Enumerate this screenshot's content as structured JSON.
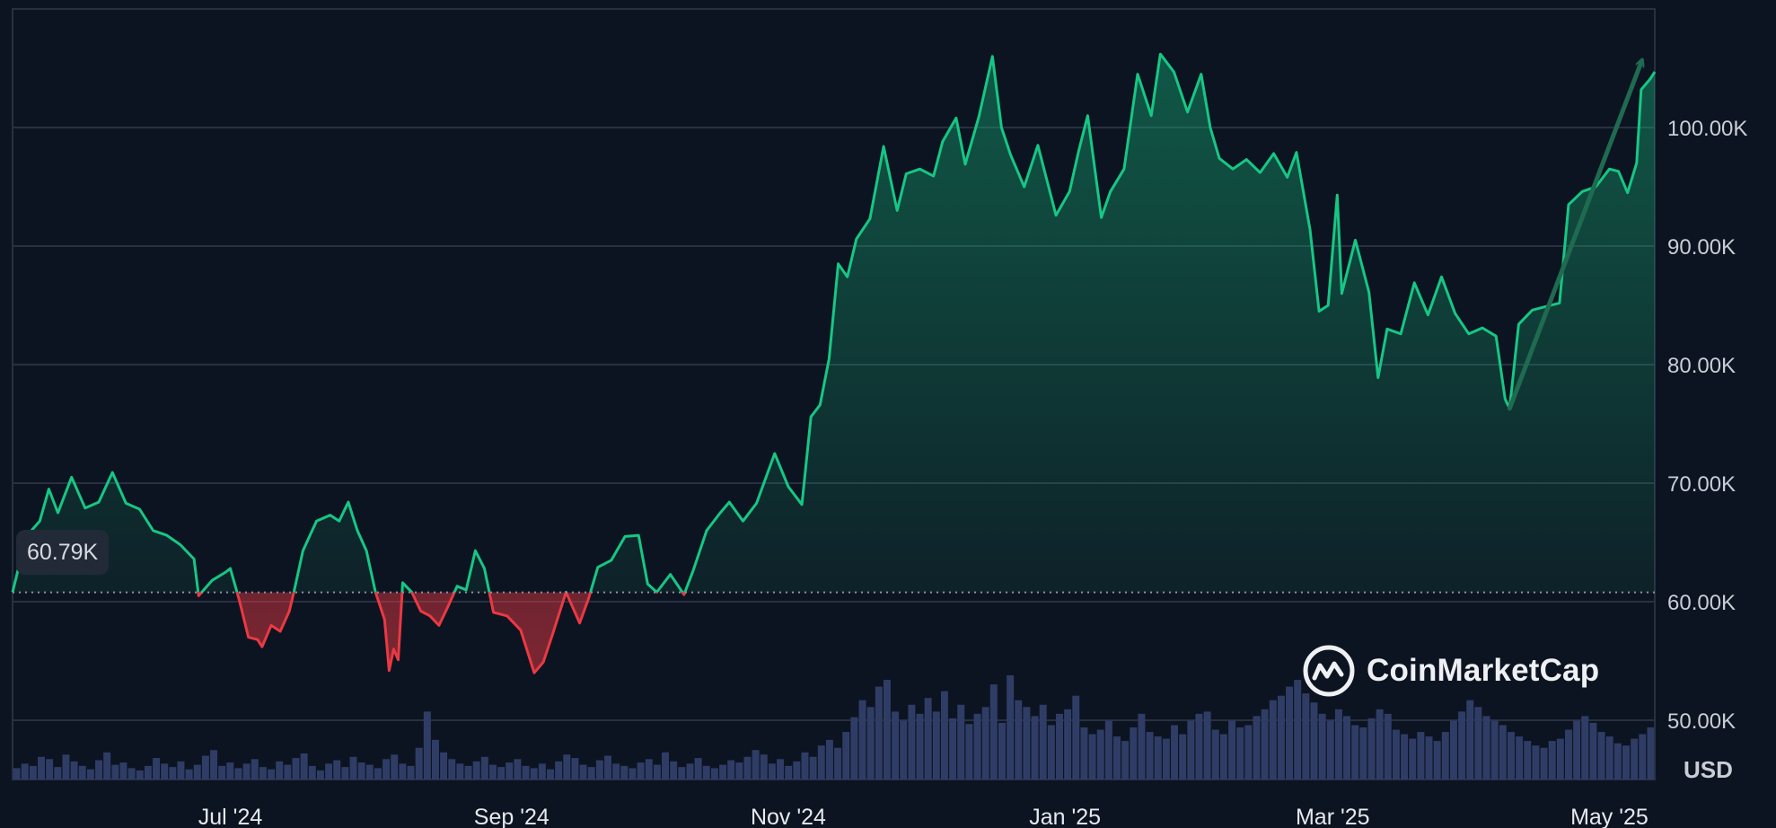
{
  "chart_data": {
    "type": "line",
    "title": "",
    "xlabel": "",
    "ylabel": "",
    "currency_label": "USD",
    "baseline": {
      "value": 60.79,
      "label": "60.79K"
    },
    "y_axis": {
      "min": 45,
      "max": 110,
      "ticks": [
        {
          "value": 50,
          "label": "50.00K"
        },
        {
          "value": 60,
          "label": "60.00K"
        },
        {
          "value": 70,
          "label": "70.00K"
        },
        {
          "value": 80,
          "label": "80.00K"
        },
        {
          "value": 90,
          "label": "90.00K"
        },
        {
          "value": 100,
          "label": "100.00K"
        }
      ]
    },
    "x_axis": {
      "range": [
        "2024-05-14",
        "2025-05-11"
      ],
      "ticks": [
        {
          "date": "2024-07-01",
          "label": "Jul '24"
        },
        {
          "date": "2024-09-01",
          "label": "Sep '24"
        },
        {
          "date": "2024-11-01",
          "label": "Nov '24"
        },
        {
          "date": "2025-01-01",
          "label": "Jan '25"
        },
        {
          "date": "2025-03-01",
          "label": "Mar '25"
        },
        {
          "date": "2025-05-01",
          "label": "May '25"
        }
      ]
    },
    "colors": {
      "above": "#16c784",
      "below": "#ea3943",
      "volume": "#2f3d66",
      "grid": "#283041"
    },
    "price_series": {
      "name": "",
      "unit": "K USD",
      "points": [
        [
          "2024-05-14",
          60.8
        ],
        [
          "2024-05-17",
          65.5
        ],
        [
          "2024-05-20",
          66.8
        ],
        [
          "2024-05-22",
          69.5
        ],
        [
          "2024-05-24",
          67.5
        ],
        [
          "2024-05-27",
          70.5
        ],
        [
          "2024-05-30",
          67.9
        ],
        [
          "2024-06-02",
          68.4
        ],
        [
          "2024-06-05",
          70.9
        ],
        [
          "2024-06-08",
          68.3
        ],
        [
          "2024-06-11",
          67.8
        ],
        [
          "2024-06-14",
          66.0
        ],
        [
          "2024-06-17",
          65.6
        ],
        [
          "2024-06-20",
          64.8
        ],
        [
          "2024-06-23",
          63.6
        ],
        [
          "2024-06-24",
          60.5
        ],
        [
          "2024-06-27",
          61.8
        ],
        [
          "2024-06-30",
          62.5
        ],
        [
          "2024-07-01",
          62.8
        ],
        [
          "2024-07-03",
          60.1
        ],
        [
          "2024-07-05",
          57.0
        ],
        [
          "2024-07-07",
          56.8
        ],
        [
          "2024-07-08",
          56.2
        ],
        [
          "2024-07-10",
          58.0
        ],
        [
          "2024-07-12",
          57.5
        ],
        [
          "2024-07-14",
          59.2
        ],
        [
          "2024-07-15",
          60.8
        ],
        [
          "2024-07-17",
          64.3
        ],
        [
          "2024-07-20",
          66.8
        ],
        [
          "2024-07-23",
          67.3
        ],
        [
          "2024-07-25",
          66.8
        ],
        [
          "2024-07-27",
          68.4
        ],
        [
          "2024-07-29",
          66.0
        ],
        [
          "2024-07-31",
          64.3
        ],
        [
          "2024-08-02",
          60.8
        ],
        [
          "2024-08-04",
          58.5
        ],
        [
          "2024-08-05",
          54.2
        ],
        [
          "2024-08-06",
          56.0
        ],
        [
          "2024-08-07",
          55.1
        ],
        [
          "2024-08-08",
          61.6
        ],
        [
          "2024-08-10",
          60.8
        ],
        [
          "2024-08-12",
          59.2
        ],
        [
          "2024-08-14",
          58.8
        ],
        [
          "2024-08-16",
          58.0
        ],
        [
          "2024-08-18",
          59.6
        ],
        [
          "2024-08-20",
          61.3
        ],
        [
          "2024-08-22",
          61.0
        ],
        [
          "2024-08-24",
          64.3
        ],
        [
          "2024-08-26",
          62.8
        ],
        [
          "2024-08-28",
          59.1
        ],
        [
          "2024-08-31",
          58.8
        ],
        [
          "2024-09-03",
          57.6
        ],
        [
          "2024-09-06",
          54.0
        ],
        [
          "2024-09-08",
          54.9
        ],
        [
          "2024-09-10",
          57.2
        ],
        [
          "2024-09-13",
          60.8
        ],
        [
          "2024-09-16",
          58.2
        ],
        [
          "2024-09-18",
          60.3
        ],
        [
          "2024-09-20",
          62.9
        ],
        [
          "2024-09-23",
          63.5
        ],
        [
          "2024-09-26",
          65.5
        ],
        [
          "2024-09-29",
          65.6
        ],
        [
          "2024-10-01",
          61.5
        ],
        [
          "2024-10-03",
          60.8
        ],
        [
          "2024-10-06",
          62.3
        ],
        [
          "2024-10-09",
          60.6
        ],
        [
          "2024-10-11",
          62.6
        ],
        [
          "2024-10-14",
          66.0
        ],
        [
          "2024-10-17",
          67.5
        ],
        [
          "2024-10-19",
          68.4
        ],
        [
          "2024-10-22",
          66.8
        ],
        [
          "2024-10-25",
          68.3
        ],
        [
          "2024-10-29",
          72.5
        ],
        [
          "2024-11-01",
          69.7
        ],
        [
          "2024-11-04",
          68.2
        ],
        [
          "2024-11-06",
          75.6
        ],
        [
          "2024-11-08",
          76.6
        ],
        [
          "2024-11-10",
          80.5
        ],
        [
          "2024-11-12",
          88.5
        ],
        [
          "2024-11-14",
          87.4
        ],
        [
          "2024-11-16",
          90.6
        ],
        [
          "2024-11-19",
          92.3
        ],
        [
          "2024-11-22",
          98.4
        ],
        [
          "2024-11-25",
          93.0
        ],
        [
          "2024-11-27",
          96.1
        ],
        [
          "2024-11-30",
          96.5
        ],
        [
          "2024-12-03",
          95.9
        ],
        [
          "2024-12-05",
          98.8
        ],
        [
          "2024-12-08",
          100.8
        ],
        [
          "2024-12-10",
          96.9
        ],
        [
          "2024-12-13",
          100.9
        ],
        [
          "2024-12-16",
          106.0
        ],
        [
          "2024-12-18",
          100.0
        ],
        [
          "2024-12-20",
          97.7
        ],
        [
          "2024-12-23",
          95.0
        ],
        [
          "2024-12-26",
          98.5
        ],
        [
          "2024-12-30",
          92.6
        ],
        [
          "2025-01-02",
          94.6
        ],
        [
          "2025-01-04",
          98.0
        ],
        [
          "2025-01-06",
          101.0
        ],
        [
          "2025-01-09",
          92.4
        ],
        [
          "2025-01-11",
          94.6
        ],
        [
          "2025-01-14",
          96.5
        ],
        [
          "2025-01-17",
          104.5
        ],
        [
          "2025-01-20",
          101.0
        ],
        [
          "2025-01-22",
          106.2
        ],
        [
          "2025-01-25",
          104.7
        ],
        [
          "2025-01-28",
          101.3
        ],
        [
          "2025-01-31",
          104.5
        ],
        [
          "2025-02-02",
          100.0
        ],
        [
          "2025-02-04",
          97.4
        ],
        [
          "2025-02-07",
          96.5
        ],
        [
          "2025-02-10",
          97.3
        ],
        [
          "2025-02-13",
          96.2
        ],
        [
          "2025-02-16",
          97.8
        ],
        [
          "2025-02-19",
          95.8
        ],
        [
          "2025-02-21",
          97.9
        ],
        [
          "2025-02-24",
          91.4
        ],
        [
          "2025-02-26",
          84.5
        ],
        [
          "2025-02-28",
          85.0
        ],
        [
          "2025-03-02",
          94.3
        ],
        [
          "2025-03-03",
          86.0
        ],
        [
          "2025-03-06",
          90.5
        ],
        [
          "2025-03-09",
          86.1
        ],
        [
          "2025-03-11",
          78.9
        ],
        [
          "2025-03-13",
          83.0
        ],
        [
          "2025-03-16",
          82.6
        ],
        [
          "2025-03-19",
          86.9
        ],
        [
          "2025-03-22",
          84.2
        ],
        [
          "2025-03-25",
          87.4
        ],
        [
          "2025-03-28",
          84.3
        ],
        [
          "2025-03-31",
          82.6
        ],
        [
          "2025-04-03",
          83.1
        ],
        [
          "2025-04-06",
          82.4
        ],
        [
          "2025-04-08",
          77.1
        ],
        [
          "2025-04-09",
          76.3
        ],
        [
          "2025-04-11",
          83.4
        ],
        [
          "2025-04-14",
          84.6
        ],
        [
          "2025-04-17",
          84.9
        ],
        [
          "2025-04-20",
          85.2
        ],
        [
          "2025-04-22",
          93.5
        ],
        [
          "2025-04-25",
          94.6
        ],
        [
          "2025-04-28",
          95.0
        ],
        [
          "2025-05-01",
          96.5
        ],
        [
          "2025-05-03",
          96.3
        ],
        [
          "2025-05-05",
          94.5
        ],
        [
          "2025-05-07",
          97.0
        ],
        [
          "2025-05-08",
          103.2
        ],
        [
          "2025-05-10",
          104.1
        ],
        [
          "2025-05-11",
          104.7
        ]
      ]
    },
    "volume_series": {
      "name": "",
      "values": [
        10,
        14,
        12,
        20,
        18,
        11,
        22,
        16,
        12,
        9,
        17,
        24,
        13,
        15,
        10,
        8,
        12,
        19,
        14,
        11,
        16,
        9,
        13,
        21,
        26,
        12,
        15,
        10,
        14,
        18,
        11,
        9,
        16,
        13,
        19,
        23,
        12,
        8,
        14,
        17,
        11,
        20,
        15,
        13,
        10,
        18,
        22,
        14,
        12,
        28,
        60,
        35,
        24,
        18,
        14,
        12,
        16,
        20,
        13,
        11,
        15,
        18,
        12,
        10,
        14,
        9,
        16,
        22,
        19,
        13,
        11,
        17,
        21,
        14,
        12,
        10,
        15,
        18,
        13,
        24,
        16,
        11,
        14,
        19,
        12,
        10,
        13,
        17,
        15,
        20,
        26,
        22,
        14,
        18,
        12,
        16,
        24,
        20,
        30,
        35,
        28,
        42,
        55,
        70,
        64,
        82,
        88,
        60,
        52,
        66,
        58,
        72,
        60,
        78,
        54,
        66,
        49,
        58,
        64,
        84,
        50,
        92,
        70,
        64,
        56,
        66,
        48,
        58,
        62,
        74,
        46,
        40,
        44,
        52,
        38,
        34,
        46,
        58,
        42,
        38,
        36,
        48,
        40,
        52,
        58,
        60,
        44,
        40,
        52,
        46,
        48,
        56,
        62,
        70,
        74,
        82,
        88,
        76,
        68,
        58,
        52,
        62,
        56,
        48,
        46,
        54,
        62,
        58,
        44,
        40,
        36,
        42,
        38,
        34,
        42,
        52,
        60,
        70,
        64,
        56,
        52,
        48,
        42,
        38,
        34,
        30,
        28,
        34,
        36,
        44,
        52,
        56,
        50,
        42,
        38,
        32,
        30,
        36,
        40,
        46
      ]
    },
    "annotation": {
      "type": "arrow",
      "from": [
        "2025-04-09",
        76.3
      ],
      "to": [
        "2025-05-08",
        105.5
      ]
    }
  },
  "watermark": {
    "text": "CoinMarketCap"
  }
}
